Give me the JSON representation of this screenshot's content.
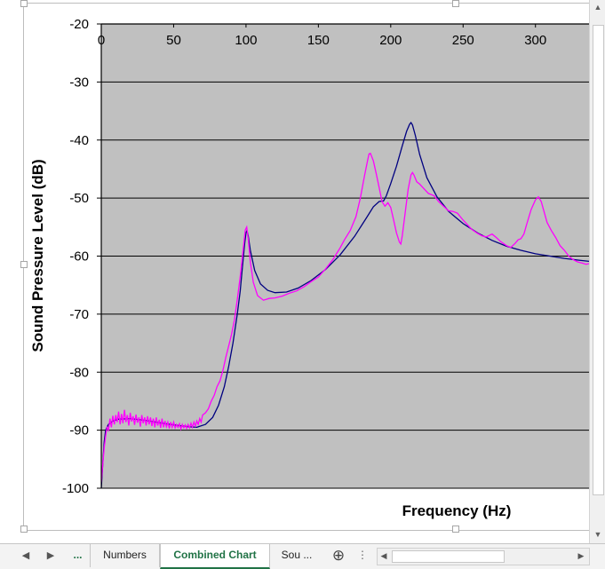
{
  "chart_data": {
    "type": "line",
    "title": "",
    "xlabel": "Frequency (Hz)",
    "ylabel": "Sound Pressure Level (dB)",
    "xlim": [
      0,
      337
    ],
    "ylim": [
      -100,
      -20
    ],
    "x_ticks": [
      0,
      50,
      100,
      150,
      200,
      250,
      300
    ],
    "y_ticks": [
      -20,
      -30,
      -40,
      -50,
      -60,
      -70,
      -80,
      -90,
      -100
    ],
    "x_tick_labels": [
      "0",
      "50",
      "100",
      "150",
      "200",
      "250",
      "300"
    ],
    "y_tick_labels": [
      "-20",
      "-30",
      "-40",
      "-50",
      "-60",
      "-70",
      "-80",
      "-90",
      "-100"
    ],
    "x_axis_position": "top",
    "grid": "horizontal",
    "legend": "none",
    "plot_background": "#c0c0c0",
    "series": [
      {
        "color": "#000080",
        "points": [
          [
            0,
            -100
          ],
          [
            1,
            -96
          ],
          [
            2,
            -92
          ],
          [
            3,
            -90
          ],
          [
            5,
            -89
          ],
          [
            8,
            -88.4
          ],
          [
            12,
            -88.1
          ],
          [
            20,
            -88
          ],
          [
            30,
            -88.3
          ],
          [
            40,
            -88.7
          ],
          [
            50,
            -89.1
          ],
          [
            60,
            -89.4
          ],
          [
            66,
            -89.5
          ],
          [
            72,
            -89
          ],
          [
            77,
            -87.8
          ],
          [
            81,
            -85.7
          ],
          [
            85,
            -82.5
          ],
          [
            88,
            -79
          ],
          [
            91,
            -75
          ],
          [
            94,
            -70
          ],
          [
            96,
            -66
          ],
          [
            97.5,
            -62
          ],
          [
            99,
            -58
          ],
          [
            100,
            -56
          ],
          [
            100.6,
            -55.6
          ],
          [
            101.5,
            -56.5
          ],
          [
            103,
            -59
          ],
          [
            106,
            -62.5
          ],
          [
            110,
            -64.8
          ],
          [
            115,
            -65.9
          ],
          [
            120,
            -66.3
          ],
          [
            128,
            -66.2
          ],
          [
            136,
            -65.5
          ],
          [
            145,
            -64.2
          ],
          [
            155,
            -62.3
          ],
          [
            165,
            -59.8
          ],
          [
            175,
            -56.6
          ],
          [
            183,
            -53.5
          ],
          [
            188,
            -51.5
          ],
          [
            192,
            -50.6
          ],
          [
            195,
            -50.5
          ],
          [
            197,
            -49.6
          ],
          [
            200,
            -47.5
          ],
          [
            204,
            -44.5
          ],
          [
            208,
            -41
          ],
          [
            211,
            -38.5
          ],
          [
            213,
            -37.3
          ],
          [
            214,
            -37
          ],
          [
            215,
            -37.4
          ],
          [
            217,
            -39.2
          ],
          [
            220,
            -42.5
          ],
          [
            225,
            -46.5
          ],
          [
            232,
            -49.8
          ],
          [
            240,
            -52.3
          ],
          [
            250,
            -54.4
          ],
          [
            260,
            -56
          ],
          [
            270,
            -57.3
          ],
          [
            280,
            -58.3
          ],
          [
            290,
            -59
          ],
          [
            300,
            -59.6
          ],
          [
            310,
            -60
          ],
          [
            320,
            -60.4
          ],
          [
            330,
            -60.7
          ],
          [
            337,
            -60.9
          ]
        ]
      },
      {
        "color": "#ff00ff",
        "points": [
          [
            0,
            -99
          ],
          [
            1,
            -96
          ],
          [
            2,
            -93
          ],
          [
            3,
            -91
          ],
          [
            4,
            -89.5
          ],
          [
            5,
            -90
          ],
          [
            6,
            -88
          ],
          [
            7,
            -89.5
          ],
          [
            8,
            -87.5
          ],
          [
            9,
            -89
          ],
          [
            10,
            -87.4
          ],
          [
            11,
            -88.6
          ],
          [
            12,
            -86.8
          ],
          [
            13,
            -89
          ],
          [
            14,
            -87.2
          ],
          [
            15,
            -88.8
          ],
          [
            16,
            -86.5
          ],
          [
            17,
            -88.6
          ],
          [
            18,
            -87.4
          ],
          [
            19,
            -89.2
          ],
          [
            20,
            -87
          ],
          [
            21,
            -88.5
          ],
          [
            22,
            -87.6
          ],
          [
            23,
            -89.1
          ],
          [
            24,
            -87.3
          ],
          [
            25,
            -88.7
          ],
          [
            26,
            -87.8
          ],
          [
            27,
            -89.4
          ],
          [
            28,
            -87.4
          ],
          [
            29,
            -88.8
          ],
          [
            30,
            -87.8
          ],
          [
            31,
            -89.2
          ],
          [
            32,
            -87.6
          ],
          [
            33,
            -89
          ],
          [
            34,
            -87.8
          ],
          [
            35,
            -89.3
          ],
          [
            36,
            -88
          ],
          [
            37,
            -89.5
          ],
          [
            38,
            -87.8
          ],
          [
            39,
            -89.2
          ],
          [
            40,
            -88.2
          ],
          [
            41,
            -89.6
          ],
          [
            42,
            -88
          ],
          [
            43,
            -89.5
          ],
          [
            44,
            -88.4
          ],
          [
            45,
            -89.4
          ],
          [
            46,
            -88.6
          ],
          [
            47,
            -89.7
          ],
          [
            48,
            -88.6
          ],
          [
            49,
            -89.5
          ],
          [
            50,
            -88.6
          ],
          [
            51,
            -89.6
          ],
          [
            52,
            -89
          ],
          [
            53,
            -89.5
          ],
          [
            54,
            -88.9
          ],
          [
            55,
            -89.8
          ],
          [
            56,
            -89
          ],
          [
            57,
            -89.6
          ],
          [
            58,
            -89.1
          ],
          [
            59,
            -89.7
          ],
          [
            60,
            -89
          ],
          [
            61,
            -89.6
          ],
          [
            62,
            -88.8
          ],
          [
            63,
            -89.5
          ],
          [
            64,
            -88.6
          ],
          [
            65,
            -89.3
          ],
          [
            66,
            -88.4
          ],
          [
            67,
            -89
          ],
          [
            68,
            -88
          ],
          [
            69,
            -88.6
          ],
          [
            70,
            -87.4
          ],
          [
            72,
            -87
          ],
          [
            74,
            -86.3
          ],
          [
            76,
            -85
          ],
          [
            78,
            -84
          ],
          [
            80,
            -82.5
          ],
          [
            82,
            -81.5
          ],
          [
            84,
            -79.8
          ],
          [
            86,
            -77.5
          ],
          [
            88,
            -75.5
          ],
          [
            90,
            -73.5
          ],
          [
            92,
            -71
          ],
          [
            94,
            -67.5
          ],
          [
            96,
            -63.5
          ],
          [
            98,
            -59
          ],
          [
            99.5,
            -55.5
          ],
          [
            100.5,
            -55
          ],
          [
            101.5,
            -57
          ],
          [
            103,
            -61
          ],
          [
            105,
            -64.5
          ],
          [
            108,
            -66.8
          ],
          [
            112,
            -67.6
          ],
          [
            116,
            -67.3
          ],
          [
            120,
            -67.2
          ],
          [
            125,
            -66.9
          ],
          [
            130,
            -66.4
          ],
          [
            135,
            -66
          ],
          [
            140,
            -65.3
          ],
          [
            145,
            -64.4
          ],
          [
            150,
            -63.6
          ],
          [
            155,
            -62.2
          ],
          [
            160,
            -60.6
          ],
          [
            165,
            -58.6
          ],
          [
            168,
            -57.2
          ],
          [
            172,
            -55.6
          ],
          [
            176,
            -53.2
          ],
          [
            179,
            -50
          ],
          [
            182,
            -46
          ],
          [
            184,
            -43.5
          ],
          [
            185,
            -42.4
          ],
          [
            186,
            -42.3
          ],
          [
            188,
            -43.6
          ],
          [
            190,
            -45.8
          ],
          [
            192,
            -48.2
          ],
          [
            194,
            -50.6
          ],
          [
            196,
            -51.4
          ],
          [
            198,
            -50.8
          ],
          [
            200,
            -51.6
          ],
          [
            202,
            -53.8
          ],
          [
            204,
            -56
          ],
          [
            206,
            -57.6
          ],
          [
            207,
            -57.9
          ],
          [
            208,
            -56.5
          ],
          [
            210,
            -52.5
          ],
          [
            212,
            -48.5
          ],
          [
            214,
            -46
          ],
          [
            215,
            -45.6
          ],
          [
            216,
            -46
          ],
          [
            218,
            -47.2
          ],
          [
            220,
            -47.6
          ],
          [
            223,
            -48.4
          ],
          [
            226,
            -49.2
          ],
          [
            230,
            -49.6
          ],
          [
            233,
            -50.6
          ],
          [
            236,
            -51.3
          ],
          [
            240,
            -52.2
          ],
          [
            243,
            -52.3
          ],
          [
            246,
            -52.6
          ],
          [
            250,
            -53.8
          ],
          [
            253,
            -54.6
          ],
          [
            256,
            -55.4
          ],
          [
            260,
            -56.1
          ],
          [
            263,
            -56.5
          ],
          [
            266,
            -56.7
          ],
          [
            270,
            -56.2
          ],
          [
            273,
            -56.8
          ],
          [
            276,
            -57.5
          ],
          [
            280,
            -58.2
          ],
          [
            283,
            -58.5
          ],
          [
            286,
            -57.8
          ],
          [
            288,
            -57.2
          ],
          [
            290,
            -57
          ],
          [
            292,
            -56.2
          ],
          [
            294,
            -54.5
          ],
          [
            297,
            -52
          ],
          [
            300,
            -50.3
          ],
          [
            302,
            -49.8
          ],
          [
            304,
            -50.6
          ],
          [
            306,
            -52.4
          ],
          [
            308,
            -54.2
          ],
          [
            311,
            -55.6
          ],
          [
            314,
            -56.8
          ],
          [
            317,
            -58.2
          ],
          [
            320,
            -59
          ],
          [
            323,
            -60
          ],
          [
            326,
            -60.6
          ],
          [
            329,
            -61
          ],
          [
            332,
            -61.2
          ],
          [
            335,
            -61.4
          ],
          [
            337,
            -61.3
          ]
        ]
      }
    ]
  },
  "tabs": {
    "nav_prev": "◀",
    "nav_next": "▶",
    "overflow": "...",
    "sheets": [
      "Numbers",
      "Combined Chart",
      "Sou ..."
    ],
    "active_sheet": "Combined Chart",
    "add_sheet": "⊕",
    "options": "⋮"
  },
  "scroll": {
    "up": "▲",
    "down": "▼",
    "left": "◀",
    "right": "▶"
  },
  "colors": {
    "accent": "#217346",
    "gridline": "#000000"
  }
}
